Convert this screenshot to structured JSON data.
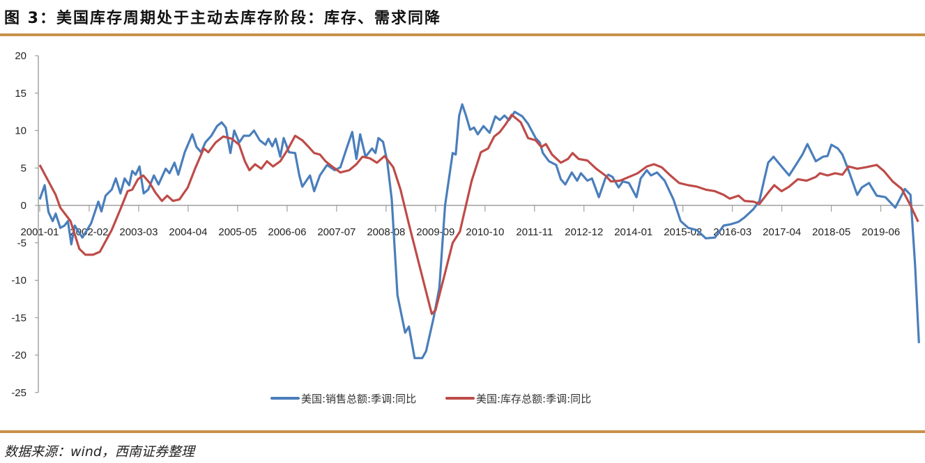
{
  "title": "图 3：美国库存周期处于主动去库存阶段：库存、需求同降",
  "source": "数据来源：wind，西南证券整理",
  "colors": {
    "rule": "#C8914A",
    "sales": "#4A7EBB",
    "inventory": "#BE4B48",
    "axis": "#8C8C8C"
  },
  "chart_data": {
    "type": "line",
    "title": "",
    "xlabel": "",
    "ylabel": "",
    "x_unit": "months since 2001-01",
    "x_range": [
      0,
      231
    ],
    "ylim": [
      -25,
      20
    ],
    "yticks": [
      "20",
      "15",
      "10",
      "5",
      "0",
      "-5",
      "-10",
      "-15",
      "-20",
      "-25"
    ],
    "ytick_values": [
      20,
      15,
      10,
      5,
      0,
      -5,
      -10,
      -15,
      -20,
      -25
    ],
    "xtick_interval_months": 13,
    "xticks": [
      "2001-01",
      "2002-02",
      "2003-03",
      "2004-04",
      "2005-05",
      "2006-06",
      "2007-07",
      "2008-08",
      "2009-09",
      "2010-10",
      "2011-11",
      "2012-12",
      "2014-01",
      "2015-02",
      "2016-03",
      "2017-04",
      "2018-05",
      "2019-06"
    ],
    "grid": false,
    "legend_position": "bottom",
    "series": [
      {
        "name": "美国:销售总额:季调:同比",
        "color_key": "sales",
        "points": [
          [
            0,
            0.8
          ],
          [
            1.3,
            2.7
          ],
          [
            2.3,
            -0.9
          ],
          [
            3.4,
            -2.1
          ],
          [
            4.2,
            -1.1
          ],
          [
            5.4,
            -3
          ],
          [
            6.5,
            -2.7
          ],
          [
            7.4,
            -2.1
          ],
          [
            8.3,
            -5.2
          ],
          [
            9.2,
            -2.7
          ],
          [
            11.2,
            -4.3
          ],
          [
            13.5,
            -2.4
          ],
          [
            15.4,
            0.5
          ],
          [
            16.2,
            -0.8
          ],
          [
            17.3,
            1.3
          ],
          [
            18.9,
            2.1
          ],
          [
            20,
            3.6
          ],
          [
            21.2,
            1.6
          ],
          [
            22.3,
            3.6
          ],
          [
            23.5,
            2.7
          ],
          [
            24.3,
            4.6
          ],
          [
            25.2,
            4.1
          ],
          [
            26.2,
            5.2
          ],
          [
            27.3,
            1.6
          ],
          [
            28.5,
            2.1
          ],
          [
            30,
            4
          ],
          [
            31.2,
            2.8
          ],
          [
            33.1,
            4.9
          ],
          [
            34.1,
            4.3
          ],
          [
            35.4,
            5.7
          ],
          [
            36.4,
            4.1
          ],
          [
            38.1,
            7.1
          ],
          [
            40.1,
            9.5
          ],
          [
            41.2,
            7.8
          ],
          [
            42.4,
            7.1
          ],
          [
            43.5,
            8.4
          ],
          [
            45.1,
            9.3
          ],
          [
            46.6,
            10.6
          ],
          [
            47.8,
            11.1
          ],
          [
            48.9,
            10.4
          ],
          [
            50.1,
            7
          ],
          [
            51.1,
            10
          ],
          [
            52.4,
            8.4
          ],
          [
            53.6,
            9.3
          ],
          [
            55.1,
            9.3
          ],
          [
            56.3,
            10
          ],
          [
            57.8,
            8.7
          ],
          [
            59.3,
            8.1
          ],
          [
            60.1,
            8.9
          ],
          [
            61.1,
            7.9
          ],
          [
            62,
            8.9
          ],
          [
            63.2,
            6.5
          ],
          [
            64.1,
            9
          ],
          [
            65.5,
            7.1
          ],
          [
            67.1,
            7
          ],
          [
            68.2,
            4
          ],
          [
            69,
            2.5
          ],
          [
            71,
            4
          ],
          [
            72.1,
            1.9
          ],
          [
            73.6,
            4
          ],
          [
            75.5,
            5.4
          ],
          [
            77.5,
            4.7
          ],
          [
            79,
            5.1
          ],
          [
            80.5,
            7.4
          ],
          [
            82.1,
            9.8
          ],
          [
            83.2,
            6.2
          ],
          [
            84.2,
            9.5
          ],
          [
            85.6,
            6.5
          ],
          [
            87.3,
            7.6
          ],
          [
            88.2,
            7
          ],
          [
            89,
            9
          ],
          [
            90.2,
            8.5
          ],
          [
            91.3,
            5.9
          ],
          [
            92.5,
            0.8
          ],
          [
            94,
            -12
          ],
          [
            96,
            -17
          ],
          [
            97,
            -16.2
          ],
          [
            98.5,
            -20.4
          ],
          [
            100.5,
            -20.4
          ],
          [
            101.5,
            -19.5
          ],
          [
            103.5,
            -15
          ],
          [
            105,
            -11
          ],
          [
            106.5,
            0
          ],
          [
            108.5,
            7
          ],
          [
            109.3,
            6.8
          ],
          [
            110.2,
            12
          ],
          [
            111,
            13.5
          ],
          [
            112,
            12
          ],
          [
            113.1,
            10.1
          ],
          [
            114.1,
            10.4
          ],
          [
            115.1,
            9.5
          ],
          [
            116.6,
            10.6
          ],
          [
            118.2,
            9.7
          ],
          [
            119.7,
            11.9
          ],
          [
            120.9,
            11.4
          ],
          [
            122.1,
            12
          ],
          [
            123.3,
            11.4
          ],
          [
            124.8,
            12.5
          ],
          [
            126.8,
            11.9
          ],
          [
            128.3,
            10.9
          ],
          [
            130.3,
            9
          ],
          [
            131.4,
            8.4
          ],
          [
            132.2,
            7
          ],
          [
            133.8,
            5.9
          ],
          [
            135.7,
            5.4
          ],
          [
            136.9,
            3.5
          ],
          [
            138.1,
            2.8
          ],
          [
            139.8,
            4.4
          ],
          [
            141.2,
            3.3
          ],
          [
            142.2,
            4.3
          ],
          [
            143.9,
            3.3
          ],
          [
            145.1,
            3.6
          ],
          [
            146.9,
            1.1
          ],
          [
            148.6,
            3.6
          ],
          [
            149.4,
            4.1
          ],
          [
            150.5,
            3.8
          ],
          [
            152.1,
            2.4
          ],
          [
            153.2,
            3.2
          ],
          [
            154.8,
            3
          ],
          [
            156.8,
            1.1
          ],
          [
            157.9,
            3.6
          ],
          [
            159.5,
            4.7
          ],
          [
            160.6,
            4
          ],
          [
            162.2,
            4.4
          ],
          [
            164.2,
            3.3
          ],
          [
            166.5,
            0.8
          ],
          [
            168.4,
            -2.1
          ],
          [
            170.4,
            -3
          ],
          [
            172.7,
            -3.3
          ],
          [
            175,
            -4.4
          ],
          [
            177.4,
            -4.3
          ],
          [
            179.7,
            -2.7
          ],
          [
            181.7,
            -2.5
          ],
          [
            183.6,
            -2.2
          ],
          [
            185.2,
            -1.6
          ],
          [
            187.5,
            -0.5
          ],
          [
            189.1,
            0.6
          ],
          [
            190.3,
            3.3
          ],
          [
            191.4,
            5.7
          ],
          [
            192.8,
            6.5
          ],
          [
            194.9,
            5.2
          ],
          [
            196.9,
            4
          ],
          [
            198.8,
            5.5
          ],
          [
            200.4,
            6.8
          ],
          [
            201.7,
            8.2
          ],
          [
            203.9,
            5.9
          ],
          [
            205.8,
            6.5
          ],
          [
            207,
            6.6
          ],
          [
            208,
            8.1
          ],
          [
            209.7,
            7.6
          ],
          [
            210.9,
            6.8
          ],
          [
            212.5,
            4.7
          ],
          [
            214.8,
            1.4
          ],
          [
            216,
            2.4
          ],
          [
            217.9,
            3
          ],
          [
            219.9,
            1.3
          ],
          [
            222.2,
            1.1
          ],
          [
            224.8,
            -0.3
          ],
          [
            227.3,
            2.2
          ],
          [
            228.8,
            1.4
          ],
          [
            230,
            -8
          ],
          [
            231,
            -18.4
          ]
        ]
      },
      {
        "name": "美国:库存总额:季调:同比",
        "color_key": "inventory",
        "points": [
          [
            0,
            5.4
          ],
          [
            4.2,
            1.4
          ],
          [
            5.4,
            -0.3
          ],
          [
            8.1,
            -2.1
          ],
          [
            10.4,
            -5.8
          ],
          [
            12,
            -6.6
          ],
          [
            14,
            -6.6
          ],
          [
            15.8,
            -6.2
          ],
          [
            18.9,
            -3.3
          ],
          [
            21.2,
            -0.5
          ],
          [
            23.1,
            1.9
          ],
          [
            24.3,
            2.1
          ],
          [
            25.8,
            3.5
          ],
          [
            27.2,
            4
          ],
          [
            28.9,
            3
          ],
          [
            30.4,
            1.7
          ],
          [
            32.1,
            0.6
          ],
          [
            33.5,
            1.3
          ],
          [
            35,
            0.6
          ],
          [
            36.7,
            0.8
          ],
          [
            38.9,
            2.4
          ],
          [
            40.8,
            4.9
          ],
          [
            43.1,
            7.6
          ],
          [
            44.3,
            7.1
          ],
          [
            46.2,
            8.4
          ],
          [
            48.2,
            9.2
          ],
          [
            50.5,
            8.9
          ],
          [
            52.4,
            8.1
          ],
          [
            53.9,
            5.9
          ],
          [
            55.1,
            4.7
          ],
          [
            56.6,
            5.5
          ],
          [
            58.2,
            4.9
          ],
          [
            59.7,
            5.9
          ],
          [
            61.3,
            5.2
          ],
          [
            63.2,
            5.9
          ],
          [
            65.1,
            7.4
          ],
          [
            67.1,
            9.3
          ],
          [
            69,
            8.7
          ],
          [
            70.5,
            7.9
          ],
          [
            72.1,
            7
          ],
          [
            73.6,
            6.8
          ],
          [
            75.1,
            5.9
          ],
          [
            77.1,
            5.1
          ],
          [
            79,
            4.4
          ],
          [
            81.3,
            4.7
          ],
          [
            83.2,
            5.5
          ],
          [
            84.8,
            6.5
          ],
          [
            86.7,
            6.3
          ],
          [
            88.6,
            5.7
          ],
          [
            90.6,
            6.6
          ],
          [
            92.9,
            5.1
          ],
          [
            94.8,
            2.1
          ],
          [
            97,
            -2.5
          ],
          [
            100,
            -8.5
          ],
          [
            103,
            -14.5
          ],
          [
            104,
            -14
          ],
          [
            106,
            -10
          ],
          [
            108.5,
            -5
          ],
          [
            110.4,
            -3.5
          ],
          [
            111.2,
            -1.7
          ],
          [
            113.5,
            3.3
          ],
          [
            115.9,
            7.1
          ],
          [
            117.8,
            7.6
          ],
          [
            119.4,
            9.2
          ],
          [
            120.9,
            9.8
          ],
          [
            122.5,
            10.9
          ],
          [
            124,
            12.1
          ],
          [
            126.4,
            11.1
          ],
          [
            128.3,
            9
          ],
          [
            130.3,
            8.7
          ],
          [
            131.8,
            7.8
          ],
          [
            133,
            8.2
          ],
          [
            134.6,
            6.8
          ],
          [
            136.9,
            5.7
          ],
          [
            138.8,
            6.2
          ],
          [
            140,
            7
          ],
          [
            141.6,
            6.2
          ],
          [
            143.9,
            6
          ],
          [
            146.2,
            4.9
          ],
          [
            148.6,
            4
          ],
          [
            150.1,
            3.2
          ],
          [
            152.5,
            3.3
          ],
          [
            154.8,
            3.8
          ],
          [
            157.1,
            4.3
          ],
          [
            159.5,
            5.2
          ],
          [
            161.4,
            5.5
          ],
          [
            163.4,
            5.1
          ],
          [
            165.7,
            4
          ],
          [
            168,
            3
          ],
          [
            170.4,
            2.7
          ],
          [
            172.7,
            2.5
          ],
          [
            175,
            2.1
          ],
          [
            177.4,
            1.9
          ],
          [
            179.7,
            1.4
          ],
          [
            181.3,
            0.9
          ],
          [
            183.6,
            1.3
          ],
          [
            185.2,
            0.6
          ],
          [
            187.5,
            0.5
          ],
          [
            189.1,
            0.2
          ],
          [
            191.4,
            1.7
          ],
          [
            193,
            2.7
          ],
          [
            194.9,
            1.9
          ],
          [
            196.9,
            2.5
          ],
          [
            199.2,
            3.5
          ],
          [
            201.5,
            3.3
          ],
          [
            203.9,
            3.8
          ],
          [
            205,
            4.3
          ],
          [
            207,
            4
          ],
          [
            209,
            4.3
          ],
          [
            210.9,
            4.1
          ],
          [
            212.5,
            5.2
          ],
          [
            214.8,
            4.9
          ],
          [
            217.1,
            5.1
          ],
          [
            219.9,
            5.4
          ],
          [
            221.8,
            4.6
          ],
          [
            224.1,
            3.2
          ],
          [
            226.5,
            2.2
          ],
          [
            228.8,
            0
          ],
          [
            230.8,
            -2.2
          ]
        ]
      }
    ]
  }
}
